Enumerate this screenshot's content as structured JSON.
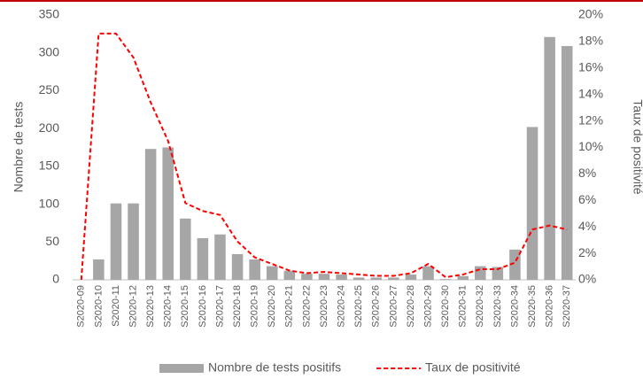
{
  "chart_data": {
    "type": "bar",
    "y_label": "Nombre de tests",
    "y2_label": "Taux de positivité",
    "categories": [
      "S2020-09",
      "S2020-10",
      "S2020-11",
      "S2020-12",
      "S2020-13",
      "S2020-14",
      "S2020-15",
      "S2020-16",
      "S2020-17",
      "S2020-18",
      "S2020-19",
      "S2020-20",
      "S2020-21",
      "S2020-22",
      "S2020-23",
      "S2020-24",
      "S2020-25",
      "S2020-26",
      "S2020-27",
      "S2020-28",
      "S2020-29",
      "S2020-30",
      "S2020-31",
      "S2020-32",
      "S2020-33",
      "S2020-34",
      "S2020-35",
      "S2020-36",
      "S2020-37"
    ],
    "series": [
      {
        "name": "Nombre de tests positifs",
        "type": "bar",
        "color": "#a6a6a6",
        "values": [
          0,
          27,
          101,
          101,
          173,
          175,
          81,
          55,
          60,
          34,
          27,
          18,
          12,
          8,
          8,
          7,
          3,
          3,
          3,
          7,
          18,
          1,
          5,
          18,
          17,
          40,
          202,
          321,
          309
        ]
      },
      {
        "name": "Taux de positivité",
        "type": "line",
        "axis": "y2",
        "color": "#ff0000",
        "dashed": true,
        "values": [
          0,
          18.6,
          18.6,
          16.8,
          13.4,
          10.5,
          5.8,
          5.2,
          4.9,
          2.9,
          1.7,
          1.2,
          0.7,
          0.5,
          0.6,
          0.5,
          0.4,
          0.3,
          0.3,
          0.5,
          1.2,
          0.2,
          0.4,
          0.8,
          0.8,
          1.3,
          3.8,
          4.1,
          3.8
        ]
      }
    ],
    "ylim": [
      0,
      350
    ],
    "yticks": [
      0,
      50,
      100,
      150,
      200,
      250,
      300,
      350
    ],
    "y2lim": [
      0,
      20
    ],
    "y2ticks": [
      {
        "value": 0,
        "label": "0%"
      },
      {
        "value": 2,
        "label": "2%"
      },
      {
        "value": 4,
        "label": "4%"
      },
      {
        "value": 6,
        "label": "6%"
      },
      {
        "value": 8,
        "label": "8%"
      },
      {
        "value": 10,
        "label": "10%"
      },
      {
        "value": 12,
        "label": "12%"
      },
      {
        "value": 14,
        "label": "14%"
      },
      {
        "value": 16,
        "label": "16%"
      },
      {
        "value": 18,
        "label": "18%"
      },
      {
        "value": 20,
        "label": "20%"
      }
    ],
    "legend": "bottom",
    "grid": false
  }
}
